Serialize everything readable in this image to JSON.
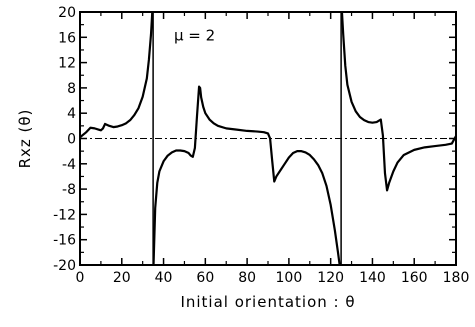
{
  "chart_data": {
    "type": "line",
    "title": "",
    "xlabel": "Initial orientation : θ",
    "ylabel": "Rxz (θ)",
    "xlim": [
      0,
      180
    ],
    "ylim": [
      -20,
      20
    ],
    "x_ticks": [
      0,
      20,
      40,
      60,
      80,
      100,
      120,
      140,
      160,
      180
    ],
    "y_ticks": [
      20,
      16,
      12,
      8,
      4,
      0,
      -4,
      -8,
      -12,
      -16,
      -20
    ],
    "x_tick_labels": [
      "0",
      "20",
      "40",
      "60",
      "80",
      "100",
      "120",
      "140",
      "160",
      "180"
    ],
    "y_tick_labels": [
      "20",
      "16",
      "12",
      "8",
      "4",
      "0",
      "-4",
      "-8",
      "-12",
      "-16",
      "-20"
    ],
    "grid": false,
    "zero_line": {
      "y": 0,
      "style": "dash-dot"
    },
    "vertical_reference_lines": [
      35,
      125
    ],
    "annotations": [
      {
        "text": "μ = 2",
        "x": 45,
        "y": 15.5
      }
    ],
    "series": [
      {
        "segments": [
          [
            [
              0,
              0.2
            ],
            [
              3,
              1.0
            ],
            [
              5,
              1.7
            ],
            [
              7,
              1.6
            ],
            [
              9,
              1.4
            ],
            [
              10,
              1.3
            ],
            [
              11,
              1.6
            ],
            [
              12,
              2.3
            ],
            [
              14,
              2.0
            ],
            [
              16,
              1.8
            ],
            [
              18,
              1.9
            ],
            [
              20,
              2.1
            ],
            [
              22,
              2.4
            ],
            [
              24,
              2.9
            ],
            [
              26,
              3.7
            ],
            [
              28,
              4.8
            ],
            [
              30,
              6.6
            ],
            [
              32,
              9.5
            ],
            [
              33,
              12.5
            ],
            [
              34,
              16.5
            ],
            [
              34.6,
              20
            ]
          ],
          [
            [
              35.2,
              -20
            ],
            [
              36,
              -11
            ],
            [
              37,
              -7
            ],
            [
              38,
              -5.2
            ],
            [
              40,
              -3.6
            ],
            [
              42,
              -2.7
            ],
            [
              44,
              -2.2
            ],
            [
              46,
              -1.9
            ],
            [
              48,
              -1.9
            ],
            [
              50,
              -2.0
            ],
            [
              52,
              -2.3
            ],
            [
              53,
              -2.7
            ],
            [
              54,
              -2.9
            ],
            [
              55,
              -1.5
            ],
            [
              56,
              3.5
            ],
            [
              57,
              8.2
            ],
            [
              57.5,
              8.0
            ],
            [
              58,
              6.5
            ],
            [
              59,
              5.0
            ],
            [
              60,
              4.0
            ],
            [
              62,
              3.0
            ],
            [
              64,
              2.4
            ],
            [
              66,
              2.0
            ],
            [
              70,
              1.6
            ],
            [
              75,
              1.4
            ],
            [
              80,
              1.2
            ],
            [
              85,
              1.1
            ],
            [
              88,
              1.0
            ],
            [
              90,
              0.8
            ],
            [
              91,
              0
            ],
            [
              92,
              -3.5
            ],
            [
              93,
              -6.8
            ],
            [
              94,
              -6.0
            ],
            [
              96,
              -5.0
            ],
            [
              98,
              -4.0
            ],
            [
              100,
              -3.0
            ],
            [
              102,
              -2.3
            ],
            [
              104,
              -2.0
            ],
            [
              106,
              -2.0
            ],
            [
              108,
              -2.2
            ],
            [
              110,
              -2.6
            ],
            [
              112,
              -3.3
            ],
            [
              114,
              -4.2
            ],
            [
              116,
              -5.5
            ],
            [
              118,
              -7.5
            ],
            [
              120,
              -10.5
            ],
            [
              122,
              -14.5
            ],
            [
              123.5,
              -18
            ],
            [
              124.3,
              -20
            ]
          ],
          [
            [
              125.4,
              20
            ],
            [
              126,
              16.5
            ],
            [
              127,
              11.5
            ],
            [
              128,
              8.5
            ],
            [
              130,
              5.8
            ],
            [
              132,
              4.3
            ],
            [
              134,
              3.4
            ],
            [
              136,
              2.9
            ],
            [
              138,
              2.6
            ],
            [
              140,
              2.5
            ],
            [
              142,
              2.6
            ],
            [
              143,
              2.8
            ],
            [
              144,
              3.0
            ],
            [
              145,
              0.5
            ],
            [
              146,
              -5.5
            ],
            [
              147,
              -8.2
            ],
            [
              148,
              -7.0
            ],
            [
              150,
              -5.2
            ],
            [
              152,
              -3.8
            ],
            [
              155,
              -2.6
            ],
            [
              160,
              -1.8
            ],
            [
              165,
              -1.4
            ],
            [
              170,
              -1.2
            ],
            [
              175,
              -1.0
            ],
            [
              178,
              -0.8
            ],
            [
              180,
              0.4
            ]
          ]
        ]
      }
    ]
  }
}
